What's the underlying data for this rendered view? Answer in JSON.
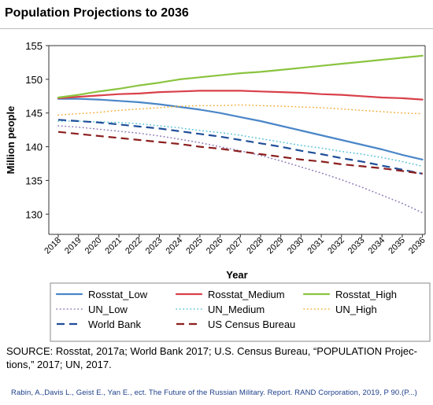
{
  "title": "Population Projections to 2036",
  "source": "SOURCE: Rosstat, 2017a; World Bank 2017; U.S. Census Bureau, “POPULATION Projec­tions,” 2017; UN, 2017.",
  "credit": "Rabin, A.,Davis L., Geist E., Yan E., ect. The Future of the Russian Military. Report. RAND Corporation, 2019, P 90.(P...)",
  "chart_data": {
    "type": "line",
    "xlabel": "Year",
    "ylabel": "Million people",
    "ylim": [
      127,
      155
    ],
    "yticks": [
      130,
      135,
      140,
      145,
      150,
      155
    ],
    "x": [
      "2018",
      "2019",
      "2020",
      "2021",
      "2022",
      "2023",
      "2024",
      "2025",
      "2026",
      "2027",
      "2028",
      "2029",
      "2030",
      "2031",
      "2032",
      "2033",
      "2034",
      "2035",
      "2036"
    ],
    "grid": false,
    "legend_position": "bottom",
    "series": [
      {
        "name": "Rosstat_Low",
        "color": "#4a86c8",
        "dash": "solid",
        "values": [
          147.1,
          147.1,
          147.0,
          146.8,
          146.6,
          146.3,
          145.9,
          145.5,
          145.0,
          144.4,
          143.8,
          143.1,
          142.4,
          141.7,
          141.0,
          140.3,
          139.6,
          138.8,
          138.1
        ]
      },
      {
        "name": "Rosstat_Medium",
        "color": "#d9404a",
        "dash": "solid",
        "values": [
          147.2,
          147.4,
          147.6,
          147.8,
          147.9,
          148.1,
          148.2,
          148.3,
          148.3,
          148.3,
          148.2,
          148.1,
          148.0,
          147.8,
          147.7,
          147.5,
          147.3,
          147.2,
          147.0
        ]
      },
      {
        "name": "Rosstat_High",
        "color": "#8bc440",
        "dash": "solid",
        "values": [
          147.3,
          147.7,
          148.2,
          148.6,
          149.1,
          149.5,
          150.0,
          150.3,
          150.6,
          150.9,
          151.1,
          151.4,
          151.7,
          152.0,
          152.3,
          152.6,
          152.9,
          153.2,
          153.5
        ]
      },
      {
        "name": "UN_Low",
        "color": "#8f7bb8",
        "dash": "dot",
        "values": [
          143.1,
          142.9,
          142.6,
          142.3,
          142.0,
          141.6,
          141.1,
          140.6,
          140.0,
          139.4,
          138.7,
          137.9,
          137.0,
          136.1,
          135.1,
          134.0,
          132.8,
          131.6,
          130.2
        ]
      },
      {
        "name": "UN_Medium",
        "color": "#5ec4d9",
        "dash": "dot",
        "values": [
          143.8,
          143.8,
          143.7,
          143.6,
          143.4,
          143.1,
          142.8,
          142.4,
          142.1,
          141.7,
          141.2,
          140.7,
          140.2,
          139.8,
          139.3,
          138.9,
          138.4,
          137.8,
          137.1
        ]
      },
      {
        "name": "UN_High",
        "color": "#f2b040",
        "dash": "dot",
        "values": [
          144.7,
          144.9,
          145.1,
          145.4,
          145.6,
          145.8,
          146.0,
          146.1,
          146.1,
          146.2,
          146.1,
          146.0,
          145.9,
          145.8,
          145.6,
          145.4,
          145.2,
          145.0,
          144.9
        ]
      },
      {
        "name": "World Bank",
        "color": "#1f4e99",
        "dash": "longdash",
        "values": [
          144.0,
          143.8,
          143.6,
          143.3,
          143.0,
          142.7,
          142.3,
          141.9,
          141.5,
          141.0,
          140.5,
          140.0,
          139.4,
          138.9,
          138.3,
          137.8,
          137.2,
          136.6,
          136.0
        ]
      },
      {
        "name": "US Census Bureau",
        "color": "#8b1e1e",
        "dash": "longdash",
        "values": [
          142.2,
          141.9,
          141.6,
          141.3,
          141.0,
          140.7,
          140.4,
          140.0,
          139.7,
          139.3,
          138.9,
          138.5,
          138.1,
          137.8,
          137.4,
          137.1,
          136.8,
          136.4,
          136.0
        ]
      }
    ]
  }
}
